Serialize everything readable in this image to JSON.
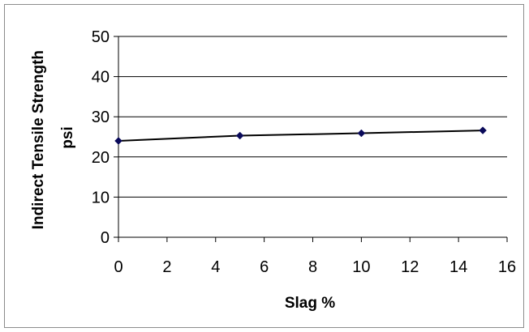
{
  "chart_data": {
    "type": "line",
    "xlabel": "Slag %",
    "ylabel": [
      "Indirect Tensile Strength",
      "psi"
    ],
    "xlim": [
      0,
      16
    ],
    "ylim": [
      0,
      50
    ],
    "xticks": [
      "0",
      "2",
      "4",
      "6",
      "8",
      "10",
      "12",
      "14",
      "16"
    ],
    "yticks": [
      "0",
      "10",
      "20",
      "30",
      "40",
      "50"
    ],
    "grid": "horizontal",
    "legend": "none",
    "series": [
      {
        "x": [
          0,
          5,
          10,
          15
        ],
        "y": [
          24.0,
          25.3,
          25.9,
          26.6
        ],
        "color": "#000000",
        "marker_color": "#0a0a5a",
        "marker": "diamond"
      }
    ]
  }
}
